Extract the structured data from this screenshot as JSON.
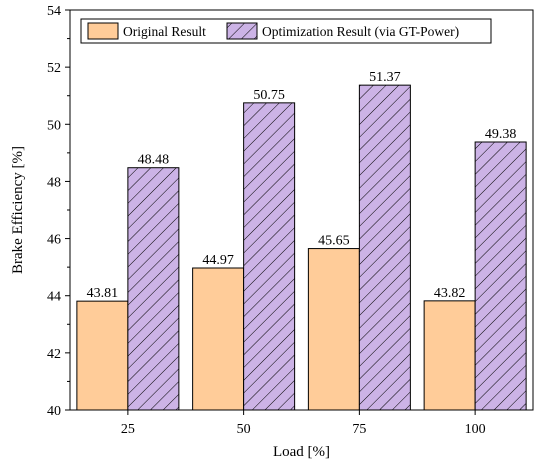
{
  "chart_data": {
    "type": "bar",
    "title": "",
    "xlabel": "Load [%]",
    "ylabel": "Brake Efficiency [%]",
    "categories": [
      "25",
      "50",
      "75",
      "100"
    ],
    "ylim": [
      40,
      54
    ],
    "yticks": [
      "40",
      "42",
      "44",
      "46",
      "48",
      "50",
      "52",
      "54"
    ],
    "grid": false,
    "legend_position": "top",
    "series": [
      {
        "name": "Original Result",
        "values": [
          43.81,
          44.97,
          45.65,
          43.82
        ],
        "labels": [
          "43.81",
          "44.97",
          "45.65",
          "43.82"
        ],
        "color": "#FFCC99",
        "pattern": "solid"
      },
      {
        "name": "Optimization Result (via GT-Power)",
        "values": [
          48.48,
          50.75,
          51.37,
          49.38
        ],
        "labels": [
          "48.48",
          "50.75",
          "51.37",
          "49.38"
        ],
        "color": "#CCB3E6",
        "pattern": "diagonal-hatch"
      }
    ]
  }
}
